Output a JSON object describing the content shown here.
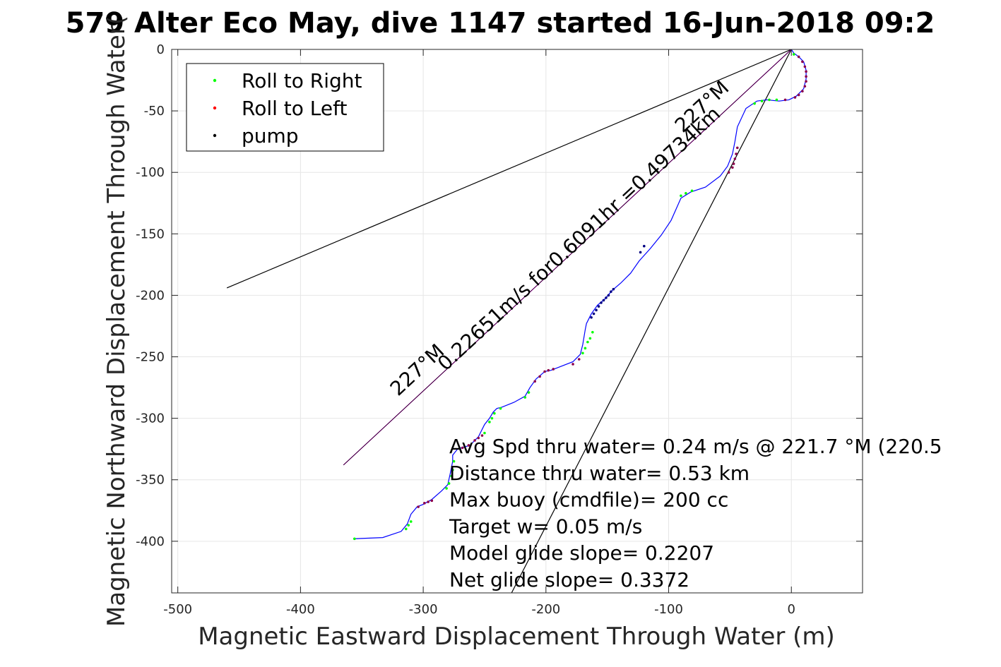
{
  "chart_data": {
    "type": "scatter",
    "title": "579 Alter Eco May, dive 1147 started 16-Jun-2018 09:2",
    "xlabel": "Magnetic Eastward Displacement Through Water (m)",
    "ylabel": "Magnetic Northward Displacement Through Water(",
    "xlim": [
      -505,
      58
    ],
    "ylim": [
      -442,
      0
    ],
    "xticks": [
      -500,
      -400,
      -300,
      -200,
      -100,
      0
    ],
    "yticks": [
      0,
      -50,
      -100,
      -150,
      -200,
      -250,
      -300,
      -350,
      -400
    ],
    "grid": true,
    "legend_position": "top-left",
    "legend": [
      {
        "label": "Roll to Right",
        "color": "#00ff00"
      },
      {
        "label": "Roll to Left",
        "color": "#ff0000"
      },
      {
        "label": "pump",
        "color": "#000000"
      }
    ],
    "track": {
      "name": "",
      "color": "#0000ff",
      "x": [
        -357,
        -333,
        -318,
        -313,
        -310,
        -305,
        -300,
        -293,
        -285,
        -280,
        -278,
        -276,
        -276,
        -272,
        -262,
        -255,
        -250,
        -246,
        -243,
        -240,
        -236,
        -226,
        -217,
        -213,
        -208,
        -201,
        -196,
        -178,
        -172,
        -170,
        -168,
        -167,
        -163,
        -158,
        -152,
        -146,
        -139,
        -131,
        -124,
        -115,
        -106,
        -98,
        -94,
        -90,
        -82,
        -70,
        -58,
        -52,
        -48,
        -46,
        -44,
        -37,
        -28,
        -20,
        -10,
        -2,
        4,
        10,
        12,
        12,
        10,
        6,
        2,
        0
      ],
      "y": [
        -398,
        -397,
        -392,
        -386,
        -378,
        -372,
        -370,
        -366,
        -359,
        -354,
        -345,
        -335,
        -330,
        -325,
        -322,
        -315,
        -305,
        -300,
        -295,
        -292,
        -291,
        -287,
        -282,
        -275,
        -268,
        -262,
        -261,
        -254,
        -248,
        -240,
        -228,
        -223,
        -215,
        -208,
        -203,
        -196,
        -190,
        -182,
        -172,
        -162,
        -151,
        -139,
        -130,
        -121,
        -116,
        -112,
        -103,
        -95,
        -85,
        -75,
        -63,
        -48,
        -42,
        -41,
        -42,
        -41,
        -38,
        -32,
        -24,
        -17,
        -10,
        -6,
        -3,
        0
      ]
    },
    "roll_right_points": {
      "x": [
        -356,
        -314,
        -312,
        -310,
        -281,
        -279,
        -277,
        -276,
        -275,
        -250,
        -246,
        -244,
        -242,
        -237,
        -217,
        -214,
        -170,
        -168,
        -166,
        -164,
        -162,
        -90,
        -86,
        -81,
        -30,
        -24,
        -18,
        -12,
        2
      ],
      "y": [
        -398,
        -390,
        -387,
        -384,
        -357,
        -353,
        -347,
        -342,
        -335,
        -312,
        -303,
        -300,
        -296,
        -292,
        -283,
        -279,
        -247,
        -243,
        -238,
        -235,
        -230,
        -119,
        -117,
        -115,
        -44,
        -42,
        -41,
        -41,
        -4
      ]
    },
    "roll_left_points": {
      "x": [
        -304,
        -299,
        -296,
        -293,
        -268,
        -263,
        -258,
        -255,
        -252,
        -209,
        -205,
        -201,
        -198,
        -194,
        -178,
        -173,
        -51,
        -48,
        -47,
        -46,
        -45,
        -44,
        -5,
        3,
        6,
        9,
        11,
        12,
        12,
        12,
        11,
        9,
        6
      ],
      "y": [
        -372,
        -369,
        -368,
        -367,
        -324,
        -322,
        -318,
        -316,
        -314,
        -270,
        -266,
        -262,
        -261,
        -260,
        -256,
        -252,
        -100,
        -96,
        -93,
        -89,
        -85,
        -80,
        -41,
        -39,
        -37,
        -34,
        -30,
        -26,
        -22,
        -18,
        -14,
        -10,
        -6
      ]
    },
    "pump_points": {
      "x": [
        -163,
        -161,
        -159,
        -157,
        -155,
        -153,
        -151,
        -149,
        -147,
        -145,
        -123,
        -120
      ],
      "y": [
        -218,
        -215,
        -212,
        -209,
        -206,
        -204,
        -202,
        -200,
        -197,
        -195,
        -165,
        -160
      ],
      "color": "#000080"
    },
    "lines": [
      {
        "name": "",
        "color": "#000000",
        "x": [
          0,
          -460
        ],
        "y": [
          0,
          -194
        ]
      },
      {
        "name": "",
        "color": "#000000",
        "x": [
          0,
          -228
        ],
        "y": [
          0,
          -442
        ]
      },
      {
        "name": "",
        "color": "#ff00ff",
        "x": [
          0,
          -365
        ],
        "y": [
          0,
          -338
        ]
      },
      {
        "name": "",
        "color": "#000000",
        "x": [
          0,
          -365
        ],
        "y": [
          0,
          -338
        ]
      }
    ],
    "rotated_annotations": {
      "near_label": "227°M",
      "mid_label": "0.22651m/s for0.6091hr =0.49734km",
      "far_label": "227°M"
    },
    "stats": [
      "Avg Spd thru water=  0.24 m/s @ 221.7 °M (220.5",
      "Distance thru water=  0.53 km",
      "Max buoy (cmdfile)= 200 cc",
      "Target w= 0.05 m/s",
      "Model glide slope= 0.2207",
      "Net glide slope= 0.3372"
    ]
  }
}
